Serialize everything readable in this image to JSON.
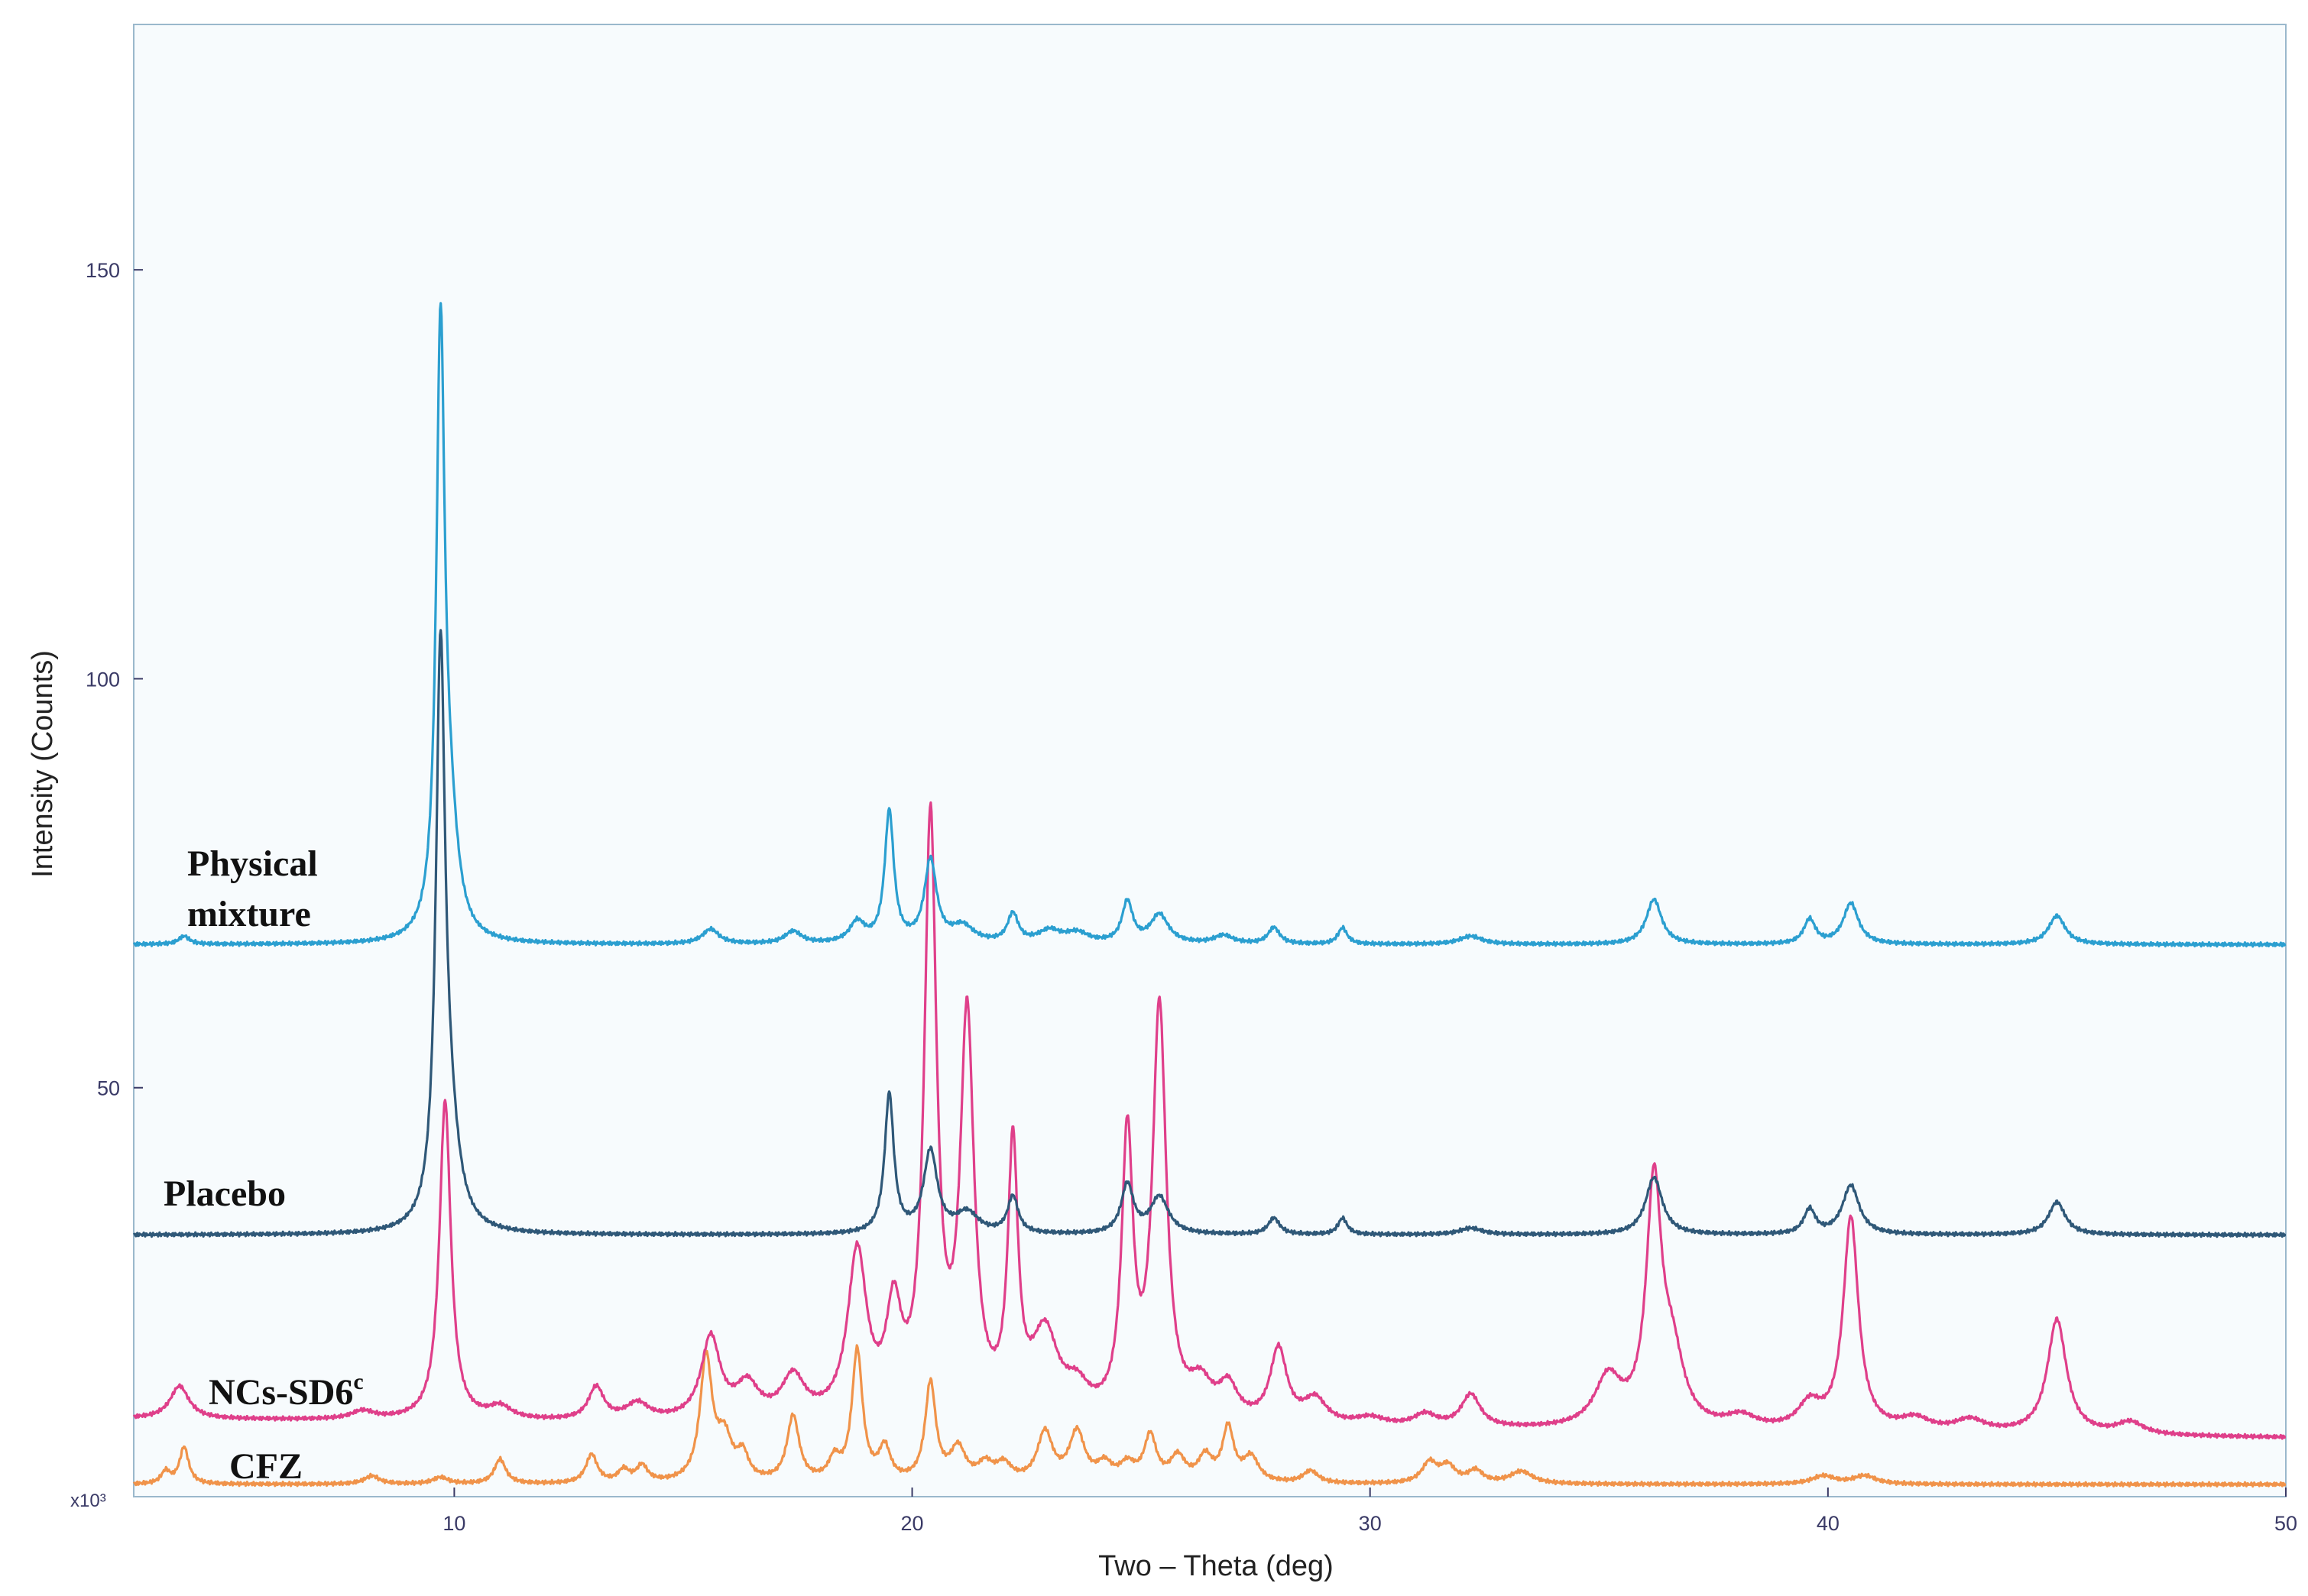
{
  "chart_data": {
    "type": "line",
    "xlabel": "Two – Theta (deg)",
    "ylabel": "Intensity (Counts)",
    "y_multiplier": "x10³",
    "xlim": [
      3,
      50
    ],
    "ylim": [
      0,
      180
    ],
    "x_ticks": [
      10,
      20,
      30,
      40,
      50
    ],
    "y_ticks": [
      50,
      100,
      150
    ],
    "grid": false,
    "legend": "none",
    "series": [
      {
        "key": "physical_mixture",
        "label_lines": [
          "Physical",
          "mixture"
        ],
        "color": "#2b9fd0",
        "baseline": 67.5,
        "peaks": [
          [
            4.1,
            1,
            0.14
          ],
          [
            9.7,
            72,
            0.11
          ],
          [
            9.9,
            12,
            0.22
          ],
          [
            15.6,
            1.8,
            0.22
          ],
          [
            17.4,
            1.5,
            0.22
          ],
          [
            18.8,
            2.5,
            0.2
          ],
          [
            19.5,
            16,
            0.12
          ],
          [
            20.4,
            10,
            0.16
          ],
          [
            21.1,
            2,
            0.3
          ],
          [
            22.2,
            3.5,
            0.14
          ],
          [
            23.0,
            1.5,
            0.3
          ],
          [
            23.6,
            1.2,
            0.3
          ],
          [
            24.7,
            5,
            0.14
          ],
          [
            25.4,
            3.5,
            0.24
          ],
          [
            26.8,
            1,
            0.25
          ],
          [
            27.9,
            2,
            0.15
          ],
          [
            29.4,
            2,
            0.12
          ],
          [
            32.2,
            1,
            0.3
          ],
          [
            36.2,
            5.5,
            0.2
          ],
          [
            39.6,
            3,
            0.15
          ],
          [
            40.5,
            5,
            0.2
          ],
          [
            45.0,
            3.5,
            0.22
          ]
        ]
      },
      {
        "key": "placebo",
        "label_lines": [
          "Placebo"
        ],
        "color": "#2f5878",
        "baseline": 32,
        "peaks": [
          [
            9.7,
            68,
            0.12
          ],
          [
            9.9,
            10,
            0.25
          ],
          [
            19.5,
            17,
            0.12
          ],
          [
            20.4,
            10,
            0.18
          ],
          [
            21.2,
            2.5,
            0.3
          ],
          [
            22.2,
            4.5,
            0.14
          ],
          [
            24.7,
            6,
            0.16
          ],
          [
            25.4,
            4.5,
            0.24
          ],
          [
            27.9,
            2,
            0.15
          ],
          [
            29.4,
            2,
            0.12
          ],
          [
            32.2,
            0.8,
            0.3
          ],
          [
            36.2,
            7,
            0.22
          ],
          [
            39.6,
            3,
            0.15
          ],
          [
            40.5,
            6,
            0.22
          ],
          [
            45.0,
            4,
            0.22
          ]
        ]
      },
      {
        "key": "ncs_sd6c",
        "label": "NCs-SD6",
        "label_sup": "c",
        "color": "#df3f8a",
        "baseline_start": 9.5,
        "baseline_end": 7.2,
        "peaks": [
          [
            4.0,
            4,
            0.25
          ],
          [
            8.0,
            1,
            0.3
          ],
          [
            9.8,
            39,
            0.15
          ],
          [
            11.0,
            1.5,
            0.3
          ],
          [
            13.1,
            4,
            0.2
          ],
          [
            14.0,
            2,
            0.3
          ],
          [
            15.6,
            10,
            0.25
          ],
          [
            16.4,
            4,
            0.3
          ],
          [
            17.4,
            5,
            0.3
          ],
          [
            18.8,
            20,
            0.25
          ],
          [
            19.6,
            12,
            0.2
          ],
          [
            20.4,
            72,
            0.16
          ],
          [
            21.2,
            48,
            0.18
          ],
          [
            22.2,
            32,
            0.13
          ],
          [
            22.9,
            10,
            0.35
          ],
          [
            23.6,
            3,
            0.3
          ],
          [
            24.7,
            34,
            0.15
          ],
          [
            25.4,
            50,
            0.18
          ],
          [
            26.3,
            4,
            0.3
          ],
          [
            26.9,
            4,
            0.25
          ],
          [
            28.0,
            9,
            0.22
          ],
          [
            28.8,
            3,
            0.3
          ],
          [
            30.0,
            1,
            0.4
          ],
          [
            31.2,
            1.5,
            0.3
          ],
          [
            32.2,
            4,
            0.25
          ],
          [
            35.2,
            6,
            0.35
          ],
          [
            36.2,
            29,
            0.2
          ],
          [
            36.6,
            8,
            0.3
          ],
          [
            38.1,
            1.5,
            0.4
          ],
          [
            39.6,
            3,
            0.3
          ],
          [
            40.5,
            26,
            0.2
          ],
          [
            41.9,
            1.5,
            0.4
          ],
          [
            43.1,
            1.5,
            0.4
          ],
          [
            45.0,
            14,
            0.25
          ],
          [
            46.6,
            1.5,
            0.35
          ]
        ]
      },
      {
        "key": "cfz",
        "label": "CFZ",
        "color": "#f0934a",
        "baseline": 1.5,
        "peaks": [
          [
            3.7,
            1.5,
            0.12
          ],
          [
            4.1,
            4.5,
            0.12
          ],
          [
            8.2,
            1,
            0.2
          ],
          [
            9.7,
            0.8,
            0.2
          ],
          [
            11.0,
            3,
            0.15
          ],
          [
            13.0,
            3.5,
            0.15
          ],
          [
            13.7,
            1.5,
            0.15
          ],
          [
            14.1,
            2,
            0.15
          ],
          [
            15.5,
            15,
            0.16
          ],
          [
            15.9,
            5,
            0.2
          ],
          [
            16.3,
            3,
            0.15
          ],
          [
            17.4,
            8,
            0.16
          ],
          [
            18.3,
            2.5,
            0.15
          ],
          [
            18.8,
            16,
            0.14
          ],
          [
            19.4,
            4,
            0.15
          ],
          [
            20.4,
            12,
            0.14
          ],
          [
            21.0,
            4,
            0.2
          ],
          [
            21.6,
            2,
            0.2
          ],
          [
            22.0,
            2,
            0.2
          ],
          [
            22.9,
            6,
            0.2
          ],
          [
            23.6,
            6,
            0.2
          ],
          [
            24.2,
            2,
            0.2
          ],
          [
            24.7,
            2,
            0.2
          ],
          [
            25.2,
            5.5,
            0.16
          ],
          [
            25.8,
            3,
            0.2
          ],
          [
            26.4,
            3,
            0.18
          ],
          [
            26.9,
            6.5,
            0.15
          ],
          [
            27.4,
            3,
            0.2
          ],
          [
            28.7,
            1.5,
            0.2
          ],
          [
            31.3,
            2.5,
            0.2
          ],
          [
            31.7,
            2,
            0.2
          ],
          [
            32.3,
            1.5,
            0.2
          ],
          [
            33.3,
            1.5,
            0.3
          ],
          [
            39.9,
            1,
            0.3
          ],
          [
            40.8,
            1,
            0.3
          ]
        ]
      }
    ]
  }
}
